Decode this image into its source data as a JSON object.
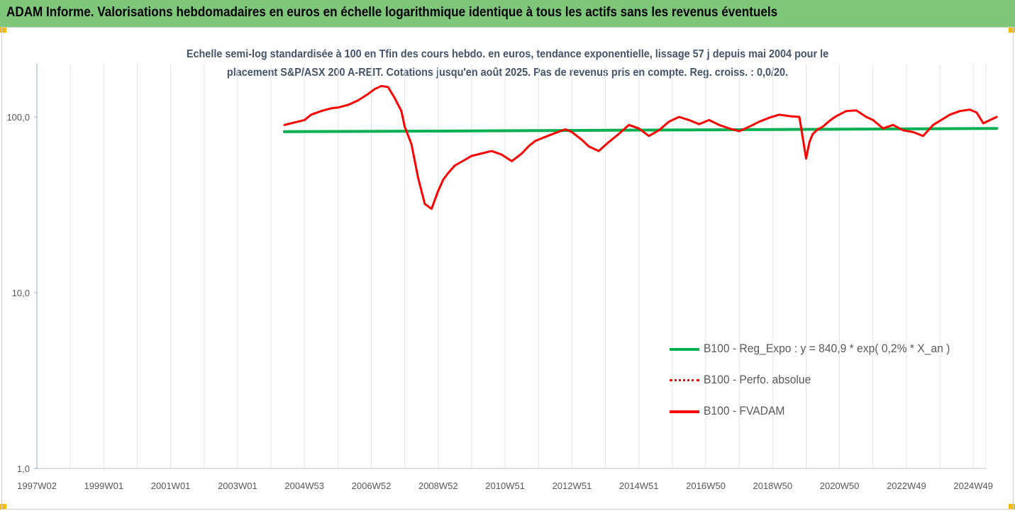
{
  "header": {
    "title": "ADAM Informe. Valorisations hebdomadaires en euros en échelle logarithmique identique à tous les actifs sans les revenus éventuels"
  },
  "chart_data": {
    "type": "line",
    "title_line1": "Echelle semi-log standardisée à 100 en Tfin des cours hebdo. en euros, tendance exponentielle, lissage 57 j depuis mai 2004 pour le",
    "title_line2": "placement S&P/ASX 200 A-REIT. Cotations jusqu'en août 2025. Pas de revenus pris en compte. Reg. croiss. : 0,0/20.",
    "y_scale": "log",
    "ylim": [
      1,
      200
    ],
    "y_ticks": [
      {
        "value": 1,
        "label": "1,0"
      },
      {
        "value": 10,
        "label": "10,0"
      },
      {
        "value": 100,
        "label": "100,0"
      }
    ],
    "xlim": [
      1997.0,
      2025.7
    ],
    "x_tick_labels": [
      {
        "x": 1997.0,
        "label": "1997W02"
      },
      {
        "x": 1999.0,
        "label": "1999W01"
      },
      {
        "x": 2001.0,
        "label": "2001W01"
      },
      {
        "x": 2003.0,
        "label": "2003W01"
      },
      {
        "x": 2005.0,
        "label": "2004W53"
      },
      {
        "x": 2007.0,
        "label": "2006W52"
      },
      {
        "x": 2009.0,
        "label": "2008W52"
      },
      {
        "x": 2011.0,
        "label": "2010W51"
      },
      {
        "x": 2013.0,
        "label": "2012W51"
      },
      {
        "x": 2015.0,
        "label": "2014W51"
      },
      {
        "x": 2017.0,
        "label": "2016W50"
      },
      {
        "x": 2019.0,
        "label": "2018W50"
      },
      {
        "x": 2021.0,
        "label": "2020W50"
      },
      {
        "x": 2023.0,
        "label": "2022W49"
      },
      {
        "x": 2025.0,
        "label": "2024W49"
      }
    ],
    "grid": "vertical",
    "legend_position": "lower-right",
    "series": [
      {
        "name": "B100 - Reg_Expo : y = 840,9 * exp( 0,2% *  X_an )",
        "color": "#00b050",
        "style": "solid",
        "x": [
          2004.4,
          2008.0,
          2012.0,
          2016.0,
          2020.0,
          2025.7
        ],
        "y": [
          82.5,
          83.0,
          83.6,
          84.3,
          85.0,
          86.0
        ]
      },
      {
        "name": "B100 - Perfo. absolue",
        "color": "#ff0000",
        "style": "dotted",
        "x": [],
        "y": []
      },
      {
        "name": "B100 - FVADAM",
        "color": "#ff0000",
        "style": "solid",
        "x": [
          2004.4,
          2004.7,
          2005.0,
          2005.2,
          2005.5,
          2005.8,
          2006.0,
          2006.3,
          2006.6,
          2006.9,
          2007.1,
          2007.3,
          2007.5,
          2007.7,
          2007.9,
          2008.0,
          2008.2,
          2008.4,
          2008.6,
          2008.8,
          2009.0,
          2009.15,
          2009.3,
          2009.5,
          2009.8,
          2010.0,
          2010.3,
          2010.6,
          2010.9,
          2011.2,
          2011.5,
          2011.7,
          2011.9,
          2012.2,
          2012.5,
          2012.8,
          2013.0,
          2013.3,
          2013.5,
          2013.8,
          2014.1,
          2014.4,
          2014.7,
          2015.0,
          2015.3,
          2015.6,
          2015.9,
          2016.2,
          2016.5,
          2016.8,
          2017.1,
          2017.4,
          2017.7,
          2018.0,
          2018.3,
          2018.6,
          2018.9,
          2019.2,
          2019.5,
          2019.8,
          2020.0,
          2020.1,
          2020.2,
          2020.35,
          2020.5,
          2020.7,
          2020.9,
          2021.2,
          2021.5,
          2021.8,
          2022.0,
          2022.3,
          2022.6,
          2022.9,
          2023.2,
          2023.5,
          2023.8,
          2024.0,
          2024.3,
          2024.6,
          2024.9,
          2025.1,
          2025.3,
          2025.5,
          2025.7
        ],
        "y": [
          90,
          93,
          96,
          103,
          108,
          112,
          113,
          117,
          124,
          135,
          144,
          150,
          148,
          128,
          108,
          88,
          70,
          45,
          32,
          30,
          38,
          44,
          48,
          53,
          57,
          60,
          62,
          64,
          61,
          56,
          62,
          68,
          73,
          77,
          81,
          85,
          82,
          74,
          68,
          64,
          72,
          80,
          90,
          86,
          78,
          84,
          94,
          100,
          96,
          91,
          96,
          90,
          86,
          83,
          88,
          94,
          99,
          103,
          101,
          100,
          58,
          72,
          80,
          85,
          88,
          95,
          101,
          108,
          109,
          100,
          96,
          86,
          90,
          84,
          82,
          78,
          90,
          95,
          103,
          108,
          110,
          106,
          92,
          96,
          100
        ]
      }
    ]
  }
}
